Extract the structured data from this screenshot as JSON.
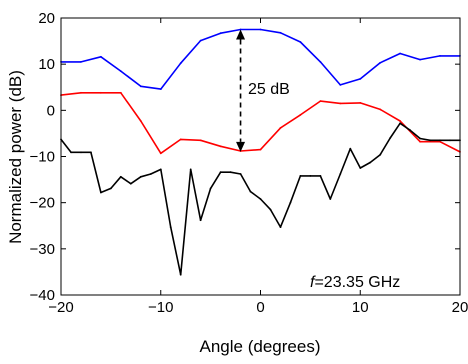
{
  "chart_data": {
    "type": "line",
    "xlabel": "Angle (degrees)",
    "ylabel": "Normalized power (dB)",
    "xlim": [
      -20,
      20
    ],
    "ylim": [
      -40,
      20
    ],
    "xticks": [
      -20,
      -10,
      0,
      10,
      20
    ],
    "yticks": [
      -40,
      -30,
      -20,
      -10,
      0,
      10,
      20
    ],
    "grid": false,
    "series": [
      {
        "color": "#0000ff",
        "x": [
          -20,
          -18,
          -16,
          -14,
          -12,
          -10,
          -8,
          -6,
          -4,
          -2,
          0,
          2,
          4,
          6,
          8,
          10,
          12,
          14,
          16,
          18,
          20
        ],
        "y": [
          10.5,
          10.5,
          11.6,
          8.5,
          5.2,
          4.6,
          10.2,
          15.1,
          16.7,
          17.5,
          17.5,
          16.8,
          14.8,
          10.5,
          5.5,
          6.8,
          10.3,
          12.3,
          11,
          11.8,
          11.8
        ]
      },
      {
        "color": "#ff0000",
        "x": [
          -20,
          -18,
          -16,
          -14,
          -12,
          -10,
          -8,
          -6,
          -4,
          -2,
          0,
          2,
          4,
          6,
          8,
          10,
          12,
          14,
          16,
          18,
          20
        ],
        "y": [
          3.3,
          3.8,
          3.8,
          3.8,
          -2.3,
          -9.3,
          -6.3,
          -6.5,
          -7.8,
          -8.8,
          -8.5,
          -3.8,
          -1,
          2,
          1.5,
          1.6,
          0.2,
          -2.3,
          -6.8,
          -6.8,
          -9
        ]
      },
      {
        "color": "#000000",
        "x": [
          -20,
          -19,
          -18,
          -17,
          -16,
          -15,
          -14,
          -13,
          -12,
          -11,
          -10,
          -9,
          -8,
          -7,
          -6,
          -5,
          -4,
          -3,
          -2,
          -1,
          0,
          1,
          2,
          3,
          4,
          5,
          6,
          7,
          8,
          9,
          10,
          11,
          12,
          13,
          14,
          15,
          16,
          17,
          18,
          19,
          20
        ],
        "y": [
          -6.3,
          -9.1,
          -9.1,
          -9.1,
          -17.8,
          -16.9,
          -14.4,
          -15.9,
          -14.4,
          -13.8,
          -12.8,
          -25.3,
          -35.6,
          -12.8,
          -23.8,
          -16.9,
          -13.4,
          -13.4,
          -13.8,
          -17.6,
          -19.2,
          -21.5,
          -25.3,
          -20,
          -14.2,
          -14.2,
          -14.2,
          -19.2,
          -13.8,
          -8.3,
          -12.5,
          -11.3,
          -9.6,
          -6,
          -2.8,
          -4.3,
          -6.1,
          -6.5,
          -6.5,
          -6.5,
          -6.5
        ]
      }
    ],
    "annotations": {
      "arrow_label": "25 dB",
      "arrow_x": -2,
      "arrow_y_top": 17.5,
      "arrow_y_bottom": -9,
      "freq_prefix": "f",
      "freq_value": "=23.35 GHz"
    }
  }
}
